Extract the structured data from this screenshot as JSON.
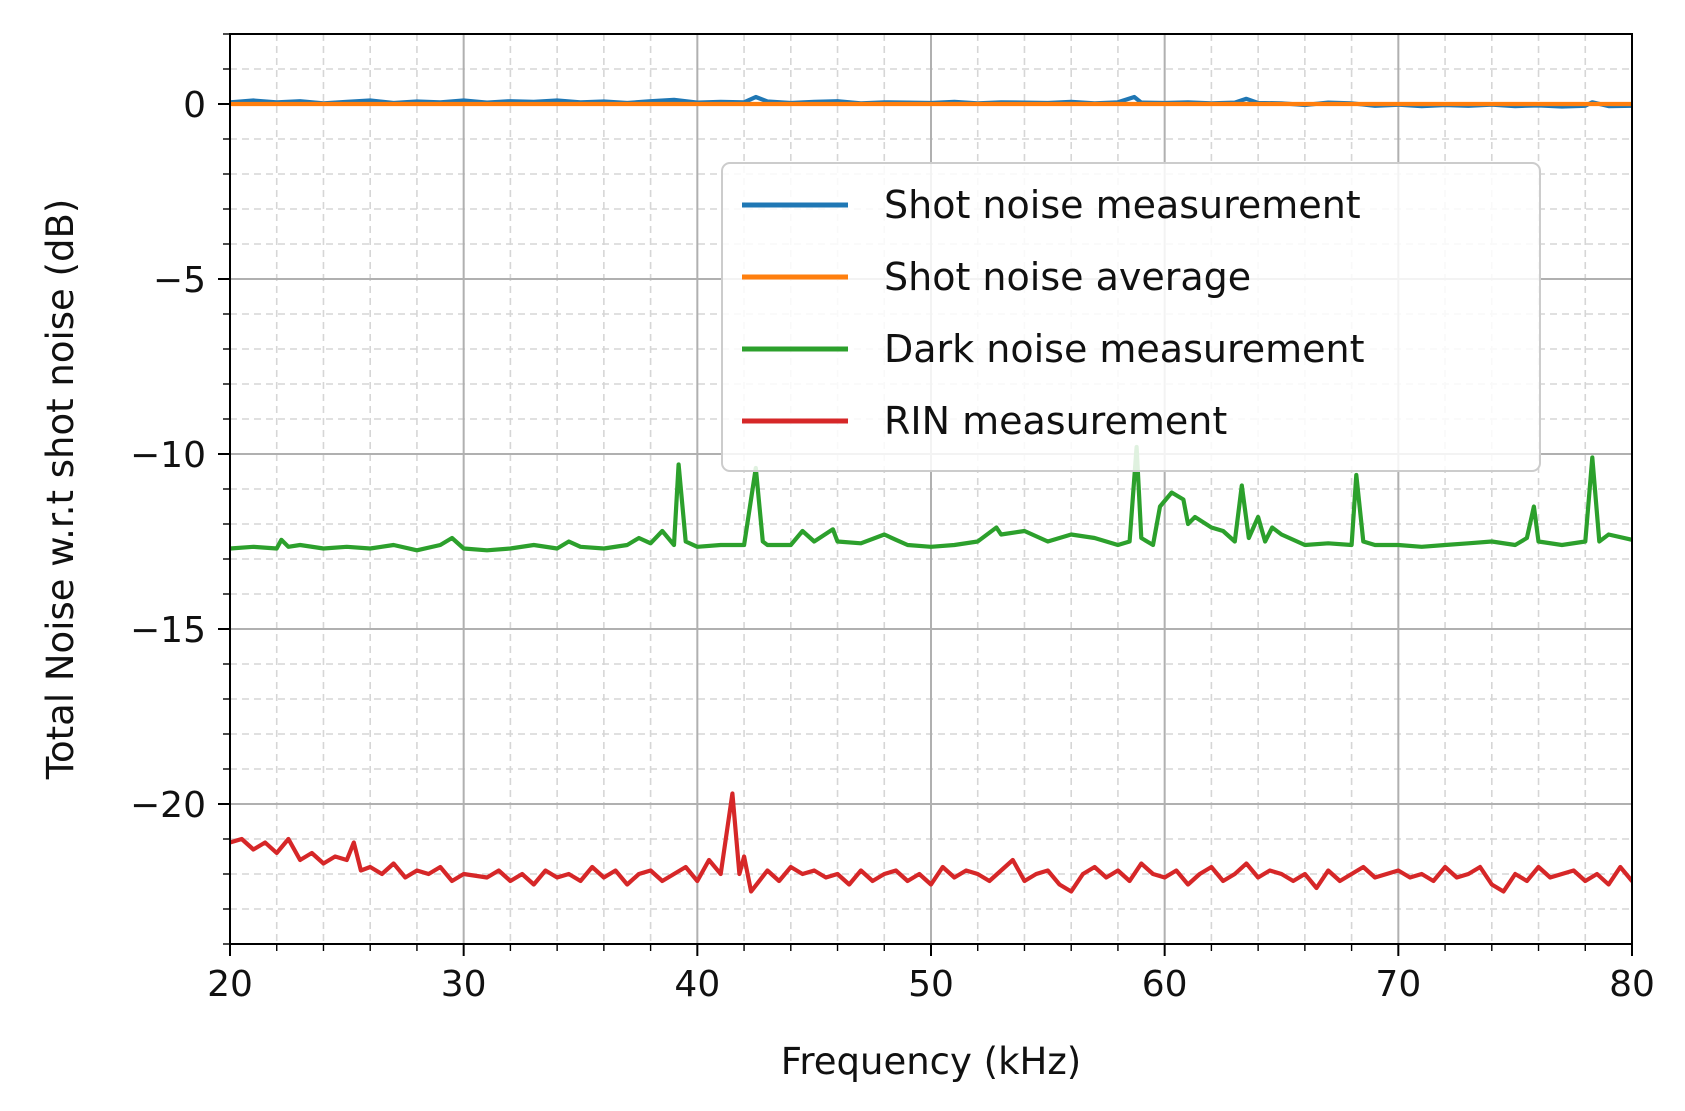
{
  "chart_data": {
    "type": "line",
    "title": "",
    "xlabel": "Frequency (kHz)",
    "ylabel": "Total Noise w.r.t shot noise (dB)",
    "xlim": [
      20,
      80
    ],
    "ylim": [
      -24,
      2
    ],
    "x_ticks": [
      20,
      30,
      40,
      50,
      60,
      70,
      80
    ],
    "x_tick_labels": [
      "20",
      "30",
      "40",
      "50",
      "60",
      "70",
      "80"
    ],
    "y_ticks": [
      0,
      -5,
      -10,
      -15,
      -20
    ],
    "y_tick_labels": [
      "0",
      "−5",
      "−10",
      "−15",
      "−20"
    ],
    "x_minor_step": 2,
    "y_minor_step": 1,
    "grid": true,
    "legend_position": "upper-right",
    "series": [
      {
        "name": "Shot noise measurement",
        "color": "#1f77b4",
        "x": [
          20,
          21,
          22,
          23,
          24,
          25,
          26,
          27,
          28,
          29,
          30,
          31,
          32,
          33,
          34,
          35,
          36,
          37,
          38,
          39,
          40,
          41,
          42,
          42.5,
          43,
          44,
          45,
          46,
          47,
          48,
          49,
          50,
          51,
          52,
          53,
          54,
          55,
          56,
          57,
          58,
          58.7,
          59,
          60,
          61,
          62,
          63,
          63.5,
          64,
          65,
          66,
          67,
          68,
          69,
          70,
          71,
          72,
          73,
          74,
          75,
          76,
          77,
          78,
          78.3,
          79,
          80
        ],
        "y": [
          0.05,
          0.1,
          0.05,
          0.08,
          0.02,
          0.06,
          0.1,
          0.03,
          0.07,
          0.05,
          0.1,
          0.04,
          0.08,
          0.06,
          0.1,
          0.05,
          0.07,
          0.03,
          0.08,
          0.12,
          0.04,
          0.06,
          0.05,
          0.2,
          0.07,
          0.03,
          0.06,
          0.08,
          0.02,
          0.05,
          0.04,
          0.03,
          0.06,
          0.02,
          0.05,
          0.04,
          0.03,
          0.06,
          0.02,
          0.05,
          0.2,
          0.04,
          0.03,
          0.05,
          0.02,
          0.04,
          0.15,
          0.03,
          0.02,
          -0.03,
          0.04,
          0.02,
          -0.05,
          -0.02,
          -0.06,
          -0.03,
          -0.05,
          -0.02,
          -0.06,
          -0.04,
          -0.07,
          -0.05,
          0.05,
          -0.06,
          -0.05
        ]
      },
      {
        "name": "Shot noise average",
        "color": "#ff7f0e",
        "x": [
          20,
          80
        ],
        "y": [
          0,
          0
        ]
      },
      {
        "name": "Dark noise measurement",
        "color": "#2ca02c",
        "x": [
          20,
          21,
          22,
          22.2,
          22.5,
          23,
          24,
          25,
          26,
          27,
          28,
          29,
          29.5,
          30,
          31,
          32,
          33,
          34,
          34.5,
          35,
          36,
          37,
          37.5,
          38,
          38.5,
          39,
          39.2,
          39.5,
          40,
          41,
          42,
          42.5,
          42.8,
          43,
          44,
          44.5,
          45,
          45.8,
          46,
          47,
          48,
          48.5,
          49,
          50,
          51,
          52,
          52.8,
          53,
          54,
          55,
          56,
          57,
          58,
          58.5,
          58.8,
          59,
          59.5,
          59.8,
          60.3,
          60.8,
          61,
          61.3,
          62,
          62.5,
          63,
          63.3,
          63.6,
          64,
          64.3,
          64.6,
          65,
          66,
          67,
          68,
          68.2,
          68.5,
          69,
          70,
          71,
          72,
          73,
          74,
          75,
          75.5,
          75.8,
          76,
          77,
          78,
          78.3,
          78.6,
          79,
          80
        ],
        "y": [
          -12.7,
          -12.65,
          -12.7,
          -12.45,
          -12.65,
          -12.6,
          -12.7,
          -12.65,
          -12.7,
          -12.6,
          -12.75,
          -12.6,
          -12.4,
          -12.7,
          -12.75,
          -12.7,
          -12.6,
          -12.7,
          -12.5,
          -12.65,
          -12.7,
          -12.6,
          -12.4,
          -12.55,
          -12.2,
          -12.6,
          -10.3,
          -12.5,
          -12.65,
          -12.6,
          -12.6,
          -10.4,
          -12.5,
          -12.6,
          -12.6,
          -12.2,
          -12.5,
          -12.15,
          -12.5,
          -12.55,
          -12.3,
          -12.45,
          -12.6,
          -12.65,
          -12.6,
          -12.5,
          -12.1,
          -12.3,
          -12.2,
          -12.5,
          -12.3,
          -12.4,
          -12.6,
          -12.5,
          -9.8,
          -12.4,
          -12.6,
          -11.5,
          -11.1,
          -11.3,
          -12.0,
          -11.8,
          -12.1,
          -12.2,
          -12.5,
          -10.9,
          -12.4,
          -11.8,
          -12.5,
          -12.1,
          -12.3,
          -12.6,
          -12.55,
          -12.6,
          -10.6,
          -12.5,
          -12.6,
          -12.6,
          -12.65,
          -12.6,
          -12.55,
          -12.5,
          -12.6,
          -12.4,
          -11.5,
          -12.5,
          -12.6,
          -12.5,
          -10.1,
          -12.5,
          -12.3,
          -12.45
        ]
      },
      {
        "name": "RIN measurement",
        "color": "#d62728",
        "x": [
          20,
          20.5,
          21,
          21.5,
          22,
          22.5,
          23,
          23.5,
          24,
          24.5,
          25,
          25.3,
          25.6,
          26,
          26.5,
          27,
          27.5,
          28,
          28.5,
          29,
          29.5,
          30,
          31,
          31.5,
          32,
          32.5,
          33,
          33.5,
          34,
          34.5,
          35,
          35.5,
          36,
          36.5,
          37,
          37.5,
          38,
          38.5,
          39,
          39.5,
          40,
          40.5,
          41,
          41.5,
          41.8,
          42,
          42.3,
          43,
          43.5,
          44,
          44.5,
          45,
          45.5,
          46,
          46.5,
          47,
          47.5,
          48,
          48.5,
          49,
          49.5,
          50,
          50.5,
          51,
          51.5,
          52,
          52.5,
          53,
          53.5,
          54,
          54.5,
          55,
          55.5,
          56,
          56.5,
          57,
          57.5,
          58,
          58.5,
          59,
          59.5,
          60,
          60.5,
          61,
          61.5,
          62,
          62.5,
          63,
          63.5,
          64,
          64.5,
          65,
          65.5,
          66,
          66.5,
          67,
          67.5,
          68,
          68.5,
          69,
          69.5,
          70,
          70.5,
          71,
          71.5,
          72,
          72.5,
          73,
          73.5,
          74,
          74.5,
          75,
          75.5,
          76,
          76.5,
          77,
          77.5,
          78,
          78.5,
          79,
          79.5,
          80
        ],
        "y": [
          -21.1,
          -21.0,
          -21.3,
          -21.1,
          -21.4,
          -21.0,
          -21.6,
          -21.4,
          -21.7,
          -21.5,
          -21.6,
          -21.1,
          -21.9,
          -21.8,
          -22.0,
          -21.7,
          -22.1,
          -21.9,
          -22.0,
          -21.8,
          -22.2,
          -22.0,
          -22.1,
          -21.9,
          -22.2,
          -22.0,
          -22.3,
          -21.9,
          -22.1,
          -22.0,
          -22.2,
          -21.8,
          -22.1,
          -21.9,
          -22.3,
          -22.0,
          -21.9,
          -22.2,
          -22.0,
          -21.8,
          -22.2,
          -21.6,
          -22.0,
          -19.7,
          -22.0,
          -21.5,
          -22.5,
          -21.9,
          -22.2,
          -21.8,
          -22.0,
          -21.9,
          -22.1,
          -22.0,
          -22.3,
          -21.9,
          -22.2,
          -22.0,
          -21.9,
          -22.2,
          -22.0,
          -22.3,
          -21.8,
          -22.1,
          -21.9,
          -22.0,
          -22.2,
          -21.9,
          -21.6,
          -22.2,
          -22.0,
          -21.9,
          -22.3,
          -22.5,
          -22.0,
          -21.8,
          -22.1,
          -21.9,
          -22.2,
          -21.7,
          -22.0,
          -22.1,
          -21.9,
          -22.3,
          -22.0,
          -21.8,
          -22.2,
          -22.0,
          -21.7,
          -22.1,
          -21.9,
          -22.0,
          -22.2,
          -22.0,
          -22.4,
          -21.9,
          -22.2,
          -22.0,
          -21.8,
          -22.1,
          -22.0,
          -21.9,
          -22.1,
          -22.0,
          -22.2,
          -21.8,
          -22.1,
          -22.0,
          -21.8,
          -22.3,
          -22.5,
          -22.0,
          -22.2,
          -21.8,
          -22.1,
          -22.0,
          -21.9,
          -22.2,
          -22.0,
          -22.3,
          -21.8,
          -22.2
        ]
      }
    ]
  }
}
